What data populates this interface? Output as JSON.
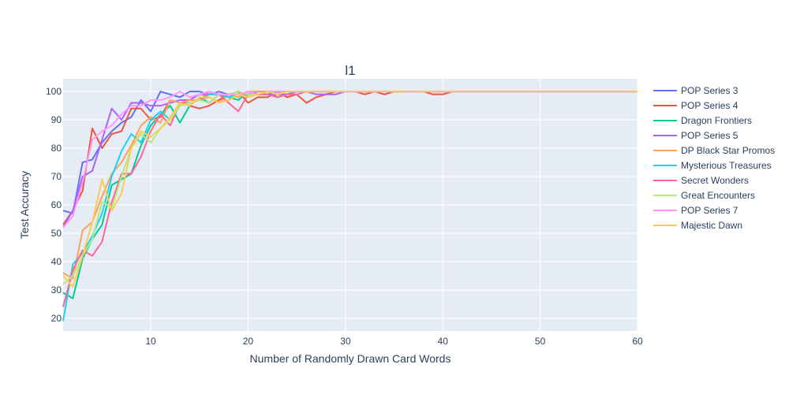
{
  "chart_data": {
    "type": "line",
    "title": "l1",
    "xlabel": "Number of Randomly Drawn Card Words",
    "ylabel": "Test Accuracy",
    "xlim": [
      1,
      60
    ],
    "ylim": [
      15.5,
      104.5
    ],
    "xticks": [
      10,
      20,
      30,
      40,
      50,
      60
    ],
    "yticks": [
      20,
      30,
      40,
      50,
      60,
      70,
      80,
      90,
      100
    ],
    "grid": true,
    "legend_position": "right",
    "x": [
      1,
      2,
      3,
      4,
      5,
      6,
      7,
      8,
      9,
      10,
      11,
      12,
      13,
      14,
      15,
      16,
      17,
      18,
      19,
      20,
      21,
      22,
      23,
      24,
      25,
      26,
      27,
      28,
      29,
      30,
      31,
      32,
      33,
      34,
      35,
      36,
      37,
      38,
      39,
      40,
      41,
      42,
      43,
      44,
      45,
      46,
      47,
      48,
      49,
      50,
      51,
      52,
      53,
      54,
      55,
      56,
      57,
      58,
      59,
      60
    ],
    "series": [
      {
        "name": "POP Series 3",
        "color": "#636efa",
        "values": [
          58,
          57,
          75,
          76,
          82,
          86,
          89,
          91,
          97,
          93,
          100,
          99,
          98,
          100,
          100,
          99,
          100,
          99,
          100,
          99,
          100,
          100,
          98,
          99,
          100,
          100,
          100,
          100,
          100,
          100,
          100,
          100,
          100,
          100,
          100,
          100,
          100,
          100,
          100,
          100,
          100,
          100,
          100,
          100,
          100,
          100,
          100,
          100,
          100,
          100,
          100,
          100,
          100,
          100,
          100,
          100,
          100,
          100,
          100,
          100
        ]
      },
      {
        "name": "POP Series 4",
        "color": "#ef553b",
        "values": [
          53,
          58,
          65,
          87,
          80,
          85,
          86,
          94,
          94,
          90,
          91,
          97,
          96,
          95,
          94,
          95,
          97,
          99,
          100,
          96,
          98,
          98,
          100,
          98,
          99,
          96,
          98,
          99,
          100,
          100,
          100,
          99,
          100,
          99,
          100,
          100,
          100,
          100,
          99,
          99,
          100,
          100,
          100,
          100,
          100,
          100,
          100,
          100,
          100,
          100,
          100,
          100,
          100,
          100,
          100,
          100,
          100,
          100,
          100,
          100
        ]
      },
      {
        "name": "Dragon Frontiers",
        "color": "#00cc96",
        "values": [
          29,
          27,
          41,
          48,
          53,
          67,
          69,
          71,
          81,
          88,
          92,
          95,
          89,
          95,
          98,
          96,
          99,
          98,
          97,
          100,
          99,
          99,
          99,
          99,
          100,
          100,
          100,
          100,
          100,
          100,
          100,
          100,
          100,
          100,
          100,
          100,
          100,
          100,
          100,
          100,
          100,
          100,
          100,
          100,
          100,
          100,
          100,
          100,
          100,
          100,
          100,
          100,
          100,
          100,
          100,
          100,
          100,
          100,
          100,
          100
        ]
      },
      {
        "name": "POP Series 5",
        "color": "#ab63fa",
        "values": [
          52,
          58,
          70,
          72,
          83,
          94,
          90,
          96,
          96,
          95,
          95,
          96,
          97,
          97,
          99,
          99,
          99,
          98,
          99,
          99,
          99,
          99,
          99,
          99,
          100,
          100,
          99,
          99,
          99,
          100,
          100,
          100,
          100,
          100,
          100,
          100,
          100,
          100,
          100,
          100,
          100,
          100,
          100,
          100,
          100,
          100,
          100,
          100,
          100,
          100,
          100,
          100,
          100,
          100,
          100,
          100,
          100,
          100,
          100,
          100
        ]
      },
      {
        "name": "DP Black Star Promos",
        "color": "#ffa15a",
        "values": [
          36,
          34,
          51,
          54,
          63,
          71,
          75,
          81,
          88,
          91,
          89,
          97,
          96,
          97,
          97,
          98,
          96,
          99,
          98,
          100,
          100,
          100,
          100,
          100,
          100,
          100,
          100,
          100,
          100,
          100,
          100,
          100,
          100,
          100,
          100,
          100,
          100,
          100,
          100,
          100,
          100,
          100,
          100,
          100,
          100,
          100,
          100,
          100,
          100,
          100,
          100,
          100,
          100,
          100,
          100,
          100,
          100,
          100,
          100,
          100
        ]
      },
      {
        "name": "Mysterious Treasures",
        "color": "#19d3f3",
        "values": [
          19,
          39,
          43,
          49,
          57,
          70,
          79,
          85,
          82,
          90,
          93,
          90,
          95,
          96,
          97,
          99,
          99,
          98,
          99,
          100,
          99,
          100,
          99,
          100,
          100,
          100,
          100,
          100,
          100,
          100,
          100,
          100,
          100,
          100,
          100,
          100,
          100,
          100,
          100,
          100,
          100,
          100,
          100,
          100,
          100,
          100,
          100,
          100,
          100,
          100,
          100,
          100,
          100,
          100,
          100,
          100,
          100,
          100,
          100,
          100
        ]
      },
      {
        "name": "Secret Wonders",
        "color": "#ff6692",
        "values": [
          24,
          37,
          44,
          42,
          47,
          61,
          71,
          71,
          77,
          86,
          92,
          88,
          96,
          96,
          97,
          100,
          99,
          96,
          93,
          99,
          99,
          99,
          98,
          99,
          99,
          100,
          100,
          100,
          100,
          100,
          100,
          100,
          100,
          100,
          100,
          100,
          100,
          100,
          100,
          100,
          100,
          100,
          100,
          100,
          100,
          100,
          100,
          100,
          100,
          100,
          100,
          100,
          100,
          100,
          100,
          100,
          100,
          100,
          100,
          100
        ]
      },
      {
        "name": "Great Encounters",
        "color": "#b6e880",
        "values": [
          32,
          35,
          42,
          48,
          61,
          59,
          70,
          80,
          85,
          82,
          87,
          90,
          95,
          96,
          97,
          96,
          99,
          99,
          100,
          99,
          99,
          100,
          100,
          100,
          100,
          100,
          100,
          100,
          100,
          100,
          100,
          100,
          100,
          100,
          100,
          100,
          100,
          100,
          100,
          100,
          100,
          100,
          100,
          100,
          100,
          100,
          100,
          100,
          100,
          100,
          100,
          100,
          100,
          100,
          100,
          100,
          100,
          100,
          100,
          100
        ]
      },
      {
        "name": "POP Series 7",
        "color": "#ff97ff",
        "values": [
          52,
          56,
          68,
          83,
          86,
          88,
          92,
          95,
          95,
          97,
          97,
          98,
          100,
          98,
          99,
          100,
          99,
          99,
          99,
          100,
          99,
          100,
          100,
          100,
          100,
          100,
          100,
          100,
          100,
          100,
          100,
          100,
          100,
          100,
          100,
          100,
          100,
          100,
          100,
          100,
          100,
          100,
          100,
          100,
          100,
          100,
          100,
          100,
          100,
          100,
          100,
          100,
          100,
          100,
          100,
          100,
          100,
          100,
          100,
          100
        ]
      },
      {
        "name": "Majestic Dawn",
        "color": "#fecb52",
        "values": [
          35,
          31,
          42,
          54,
          69,
          58,
          64,
          80,
          86,
          84,
          87,
          91,
          96,
          95,
          98,
          98,
          96,
          97,
          99,
          98,
          99,
          100,
          99,
          100,
          100,
          100,
          100,
          100,
          100,
          100,
          100,
          100,
          100,
          100,
          100,
          100,
          100,
          100,
          100,
          100,
          100,
          100,
          100,
          100,
          100,
          100,
          100,
          100,
          100,
          100,
          100,
          100,
          100,
          100,
          100,
          100,
          100,
          100,
          100,
          100
        ]
      }
    ]
  }
}
